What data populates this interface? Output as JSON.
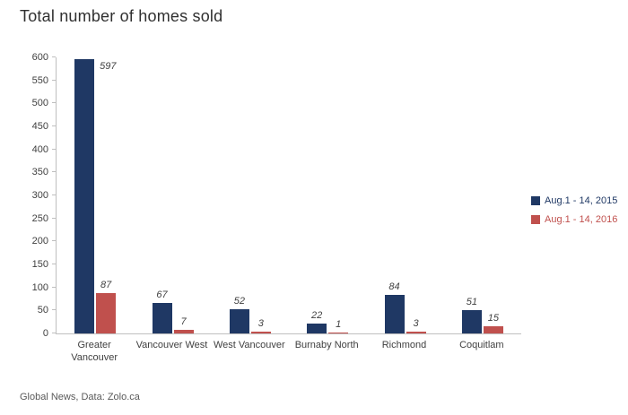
{
  "title": "Total number of homes sold",
  "footer": "Global News, Data: Zolo.ca",
  "chart_data": {
    "type": "bar",
    "title": "Total number of homes sold",
    "categories": [
      "Greater Vancouver",
      "Vancouver West",
      "West Vancouver",
      "Burnaby North",
      "Richmond",
      "Coquitlam"
    ],
    "series": [
      {
        "name": "Aug.1 - 14, 2015",
        "color": "#1F3864",
        "values": [
          597,
          67,
          52,
          22,
          84,
          51
        ]
      },
      {
        "name": "Aug.1 - 14, 2016",
        "color": "#C0504D",
        "values": [
          87,
          7,
          3,
          1,
          3,
          15
        ]
      }
    ],
    "xlabel": "",
    "ylabel": "",
    "ylim": [
      0,
      600
    ],
    "ytick_step": 50,
    "grid": false,
    "legend_position": "right",
    "value_labels_style": "italic"
  }
}
